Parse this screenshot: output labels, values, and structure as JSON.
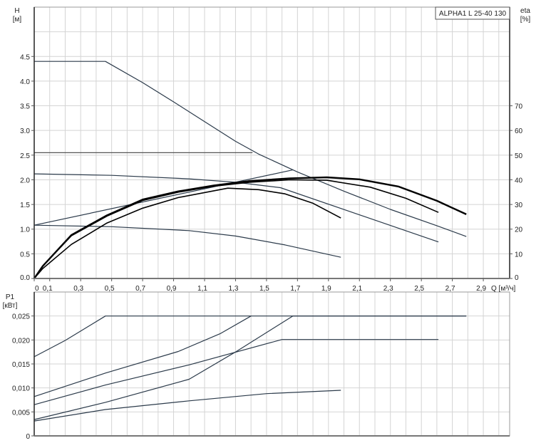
{
  "chart_data": [
    {
      "type": "line",
      "title": "ALPHA1 L 25-40 130",
      "xlabel": "Q [м³/ч]",
      "ylabel": "H",
      "ylabel_unit": "[м]",
      "y2label": "eta",
      "y2label_unit": "[%]",
      "xlim": [
        0,
        3.07
      ],
      "ylim": [
        0,
        5.5
      ],
      "y2lim": [
        0,
        110
      ],
      "grid": true,
      "x_ticks": [
        0,
        0.1,
        0.3,
        0.5,
        0.7,
        0.9,
        1.1,
        1.3,
        1.5,
        1.7,
        1.9,
        2.1,
        2.3,
        2.5,
        2.7,
        2.9
      ],
      "x_tick_labels": [
        "0",
        "0,1",
        "0,3",
        "0,5",
        "0,7",
        "0,9",
        "1,1",
        "1,3",
        "1,5",
        "1,7",
        "1,9",
        "2,1",
        "2,3",
        "2,5",
        "2,7",
        "2,9"
      ],
      "y_ticks": [
        0,
        0.5,
        1.0,
        1.5,
        2.0,
        2.5,
        3.0,
        3.5,
        4.0,
        4.5
      ],
      "y_tick_labels": [
        "0.0",
        "0.5",
        "1.0",
        "1.5",
        "2.0",
        "2.5",
        "3.0",
        "3.5",
        "4.0",
        "4.5"
      ],
      "y2_ticks": [
        0,
        10,
        20,
        30,
        40,
        50,
        60,
        70
      ],
      "y2_tick_labels": [
        "0",
        "10",
        "20",
        "30",
        "40",
        "50",
        "60",
        "70"
      ],
      "series": [
        {
          "axis": "H",
          "color": "#2b3a4a",
          "points": [
            [
              0,
              4.4
            ],
            [
              0.46,
              4.4
            ],
            [
              0.7,
              3.97
            ],
            [
              0.9,
              3.58
            ],
            [
              1.1,
              3.18
            ],
            [
              1.3,
              2.78
            ],
            [
              1.45,
              2.52
            ],
            [
              1.7,
              2.16
            ],
            [
              2.0,
              1.77
            ],
            [
              2.3,
              1.4
            ],
            [
              2.6,
              1.07
            ],
            [
              2.79,
              0.85
            ]
          ]
        },
        {
          "axis": "H",
          "color": "#555555",
          "points": [
            [
              0,
              2.55
            ],
            [
              1.41,
              2.55
            ]
          ]
        },
        {
          "axis": "H",
          "color": "#2b3a4a",
          "points": [
            [
              0,
              2.12
            ],
            [
              0.5,
              2.09
            ],
            [
              1.0,
              2.02
            ],
            [
              1.3,
              1.95
            ],
            [
              1.59,
              1.84
            ],
            [
              2.61,
              0.74
            ]
          ]
        },
        {
          "axis": "H",
          "color": "#2b3a4a",
          "points": [
            [
              0,
              1.08
            ],
            [
              1.67,
              2.2
            ]
          ]
        },
        {
          "axis": "H",
          "color": "#2b3a4a",
          "points": [
            [
              0,
              1.08
            ],
            [
              0.5,
              1.05
            ],
            [
              1.0,
              0.97
            ],
            [
              1.3,
              0.86
            ],
            [
              1.62,
              0.68
            ],
            [
              1.98,
              0.43
            ]
          ]
        },
        {
          "axis": "eta",
          "color": "#000000",
          "points": [
            [
              0,
              0
            ],
            [
              0.055,
              5
            ],
            [
              0.24,
              17.6
            ],
            [
              0.47,
              25.6
            ],
            [
              0.7,
              32
            ],
            [
              0.93,
              35.3
            ],
            [
              1.16,
              37.7
            ],
            [
              1.39,
              39.5
            ],
            [
              1.65,
              40.6
            ],
            [
              1.89,
              41
            ],
            [
              2.1,
              40.2
            ],
            [
              2.35,
              37.3
            ],
            [
              2.6,
              31.5
            ],
            [
              2.79,
              26
            ]
          ]
        },
        {
          "axis": "eta",
          "color": "#000000",
          "points": [
            [
              0,
              0
            ],
            [
              0.055,
              5
            ],
            [
              0.24,
              17.3
            ],
            [
              0.47,
              25.3
            ],
            [
              0.7,
              31.6
            ],
            [
              0.93,
              35
            ],
            [
              1.16,
              37.4
            ],
            [
              1.39,
              39
            ],
            [
              1.65,
              40
            ],
            [
              1.89,
              39.8
            ],
            [
              2.17,
              37
            ],
            [
              2.4,
              32.5
            ],
            [
              2.61,
              26.8
            ]
          ]
        },
        {
          "axis": "eta",
          "color": "#000000",
          "points": [
            [
              0,
              0
            ],
            [
              0.055,
              4
            ],
            [
              0.24,
              13.8
            ],
            [
              0.47,
              22.5
            ],
            [
              0.7,
              28.5
            ],
            [
              0.93,
              32.8
            ],
            [
              1.25,
              36.6
            ],
            [
              1.45,
              36
            ],
            [
              1.62,
              34.3
            ],
            [
              1.8,
              30.5
            ],
            [
              1.98,
              24.5
            ]
          ]
        }
      ]
    },
    {
      "type": "line",
      "ylabel": "P1",
      "ylabel_unit": "[кВт]",
      "xlim": [
        0,
        3.07
      ],
      "ylim": [
        0,
        0.03
      ],
      "grid": true,
      "y_ticks": [
        0,
        0.005,
        0.01,
        0.015,
        0.02,
        0.025
      ],
      "y_tick_labels": [
        "0",
        "0,005",
        "0,010",
        "0,015",
        "0,020",
        "0,025"
      ],
      "series": [
        {
          "color": "#2b3a4a",
          "points": [
            [
              0,
              0.0165
            ],
            [
              0.2,
              0.0199
            ],
            [
              0.46,
              0.025
            ],
            [
              2.79,
              0.025
            ]
          ]
        },
        {
          "color": "#2b3a4a",
          "points": [
            [
              0,
              0.0082
            ],
            [
              0.46,
              0.0131
            ],
            [
              0.93,
              0.0176
            ],
            [
              1.2,
              0.0213
            ],
            [
              1.4,
              0.025
            ]
          ]
        },
        {
          "color": "#2b3a4a",
          "points": [
            [
              0,
              0.0065
            ],
            [
              0.46,
              0.0106
            ],
            [
              1.0,
              0.0148
            ],
            [
              1.6,
              0.0201
            ],
            [
              2.61,
              0.0201
            ]
          ]
        },
        {
          "color": "#2b3a4a",
          "points": [
            [
              0,
              0.0034
            ],
            [
              0.46,
              0.007
            ],
            [
              1.0,
              0.0118
            ],
            [
              1.3,
              0.0175
            ],
            [
              1.67,
              0.025
            ],
            [
              2.79,
              0.025
            ]
          ]
        },
        {
          "color": "#2b3a4a",
          "points": [
            [
              0,
              0.0031
            ],
            [
              0.46,
              0.0055
            ],
            [
              1.0,
              0.0073
            ],
            [
              1.5,
              0.0088
            ],
            [
              1.98,
              0.0095
            ]
          ]
        }
      ]
    }
  ]
}
